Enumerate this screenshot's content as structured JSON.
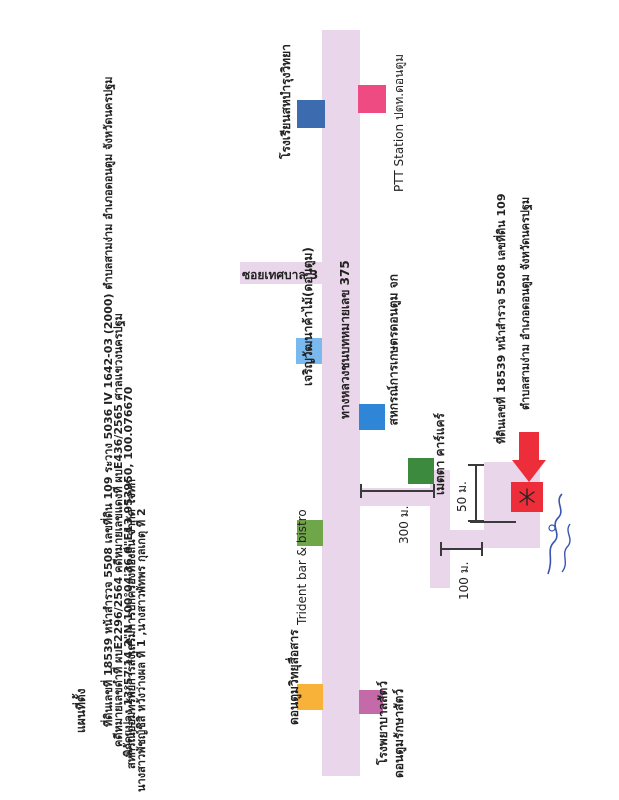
{
  "info": {
    "title": "แผนที่ตั้ง",
    "line1": "ที่ดินเลขที่ 18539 หน้าสำรวจ 5508 เลขที่ดิน 109 ระวาง 5036 IV 1642-03 (2000) ตำบลสามง่าม อำเภอดอนตูม จังหวัดนครปฐม",
    "line2": "พิกัดแปลง 13°57'14.2\"N 100°04'36.0\"E13.953950, 100.076670",
    "line3": "คดีหมายเลขดำที่ ผบE2296/2564  คดีหมายเลขแดงที่ ผบE436/2565  ศาลแขวงนครปฐม",
    "line4": "สหกรณ์ออมทรัพย์การส่งเสริมการปกครองท้องถิ่น จำกัด  โจทก์",
    "line5": "นางสาวพัชญ์ชิสิ  หวังว่างผล ที่ 1 ,นางสาวพัทพร  กุลเกตุ ที่ 2"
  },
  "labels": {
    "school": "โรงเรียนสหบำรุงวิทยา",
    "ptt": "PTT Station ปตท.ดอนตูม",
    "soi": "ซอยเทศบาล 3",
    "highway": "ทางหลวงชนบทหมายเลข 375",
    "charoen": "เจริญวัฒนาค้าไม้(ดอนตูม)",
    "coop": "สหกรณ์การเกษตรดอนตูม จก",
    "trident": "Trident bar & bistro",
    "metta": "เมตตา คาร์แคร์",
    "vet": "ดอนตูมวิทยุสื่อสาร",
    "animal_hosp_1": "โรงพยาบาลสัตว์",
    "animal_hosp_2": "ดอนตูมรักษาสัตว์",
    "dist_300": "300 ม.",
    "dist_50": "50 ม.",
    "dist_100": "100 ม.",
    "plot_1": "ที่ดินเลขที่ 18539 หน้าสำรวจ 5508 เลขที่ดิน 109",
    "plot_2": "ตำบลสามง่าม อำเภอดอนตูม  จังหวัดนครปฐม"
  },
  "colors": {
    "road": "#ead6ea",
    "school": "#3d6bb0",
    "ptt": "#ee4b82",
    "charoen": "#7ab9ee",
    "coop": "#2f86d6",
    "trident": "#70a64a",
    "metta": "#3c8a3e",
    "vet": "#f8b23a",
    "animal_hosp": "#c46aa8",
    "plot": "#ee2d3a",
    "arrow": "#ee2d3a"
  }
}
